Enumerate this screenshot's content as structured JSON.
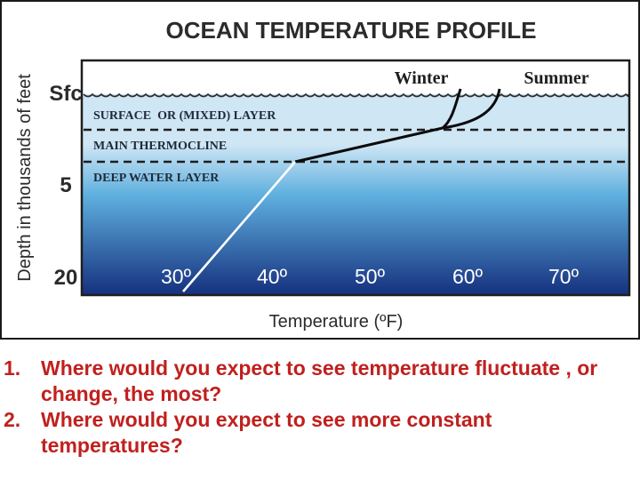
{
  "diagram": {
    "title": "OCEAN TEMPERATURE PROFILE",
    "y_axis_label": "Depth in thousands of feet",
    "y_ticks": [
      "Sfc",
      "5",
      "20"
    ],
    "x_axis_label": "Temperature (ºF)",
    "x_ticks": [
      "30º",
      "40º",
      "50º",
      "60º",
      "70º"
    ],
    "curve_labels": {
      "winter": "Winter",
      "summer": "Summer"
    },
    "layers": [
      "SURFACE  OR (MIXED) LAYER",
      "MAIN THERMOCLINE",
      "DEEP WATER LAYER"
    ],
    "colors": {
      "water_top": "#cfe6f4",
      "water_mid": "#5fb0df",
      "water_bottom": "#15307e",
      "profile_line_upper": "#0b0b0b",
      "profile_line_lower": "#ffffff",
      "question_text": "#c0201e"
    }
  },
  "questions": [
    {
      "number": "1.",
      "text": "Where would you expect to see temperature fluctuate , or change, the most?"
    },
    {
      "number": "2.",
      "text": "Where would you expect to see more constant temperatures?"
    }
  ]
}
